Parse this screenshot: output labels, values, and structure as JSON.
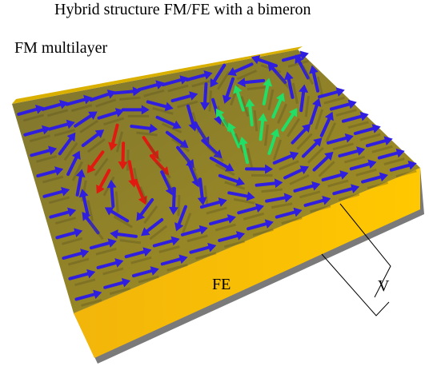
{
  "title": "Hybrid structure FM/FE with a bimeron",
  "labels": {
    "top_layer": "FM multilayer",
    "bottom_layer": "FE",
    "voltage": "V"
  }
}
